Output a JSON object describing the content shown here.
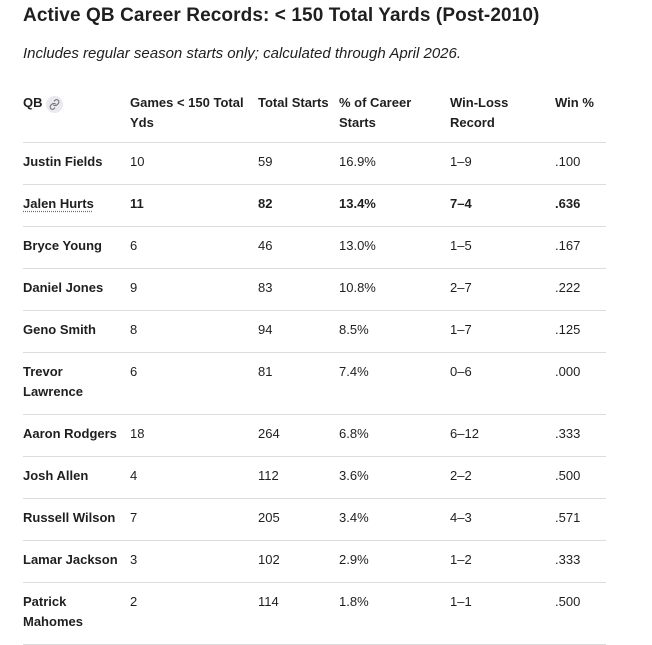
{
  "title": "Active QB Career Records: < 150 Total Yards (Post-2010)",
  "subtitle": "Includes regular season starts only; calculated through April 2026.",
  "table": {
    "headers": [
      "QB",
      "Games < 150 Total Yds",
      "Total Starts",
      "% of Career Starts",
      "Win-Loss Record",
      "Win %"
    ],
    "header_icon": "link-icon",
    "rows": [
      {
        "qb": "Justin Fields",
        "games": "10",
        "starts": "59",
        "pct": "16.9%",
        "record": "1–9",
        "win_pct": ".100"
      },
      {
        "qb": "Jalen Hurts",
        "games": "11",
        "starts": "82",
        "pct": "13.4%",
        "record": "7–4",
        "win_pct": ".636"
      },
      {
        "qb": "Bryce Young",
        "games": "6",
        "starts": "46",
        "pct": "13.0%",
        "record": "1–5",
        "win_pct": ".167"
      },
      {
        "qb": "Daniel Jones",
        "games": "9",
        "starts": "83",
        "pct": "10.8%",
        "record": "2–7",
        "win_pct": ".222"
      },
      {
        "qb": "Geno Smith",
        "games": "8",
        "starts": "94",
        "pct": "8.5%",
        "record": "1–7",
        "win_pct": ".125"
      },
      {
        "qb": "Trevor Lawrence",
        "games": "6",
        "starts": "81",
        "pct": "7.4%",
        "record": "0–6",
        "win_pct": ".000"
      },
      {
        "qb": "Aaron Rodgers",
        "games": "18",
        "starts": "264",
        "pct": "6.8%",
        "record": "6–12",
        "win_pct": ".333"
      },
      {
        "qb": "Josh Allen",
        "games": "4",
        "starts": "112",
        "pct": "3.6%",
        "record": "2–2",
        "win_pct": ".500"
      },
      {
        "qb": "Russell Wilson",
        "games": "7",
        "starts": "205",
        "pct": "3.4%",
        "record": "4–3",
        "win_pct": ".571"
      },
      {
        "qb": "Lamar Jackson",
        "games": "3",
        "starts": "102",
        "pct": "2.9%",
        "record": "1–2",
        "win_pct": ".333"
      },
      {
        "qb": "Patrick Mahomes",
        "games": "2",
        "starts": "114",
        "pct": "1.8%",
        "record": "1–1",
        "win_pct": ".500"
      }
    ]
  }
}
